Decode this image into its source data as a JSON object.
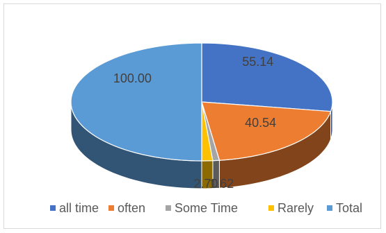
{
  "chart_data": {
    "type": "pie",
    "style": "3d",
    "title": "",
    "categories": [
      "all time",
      "often",
      "Some Time",
      "Rarely",
      "Total"
    ],
    "values": [
      55.14,
      40.54,
      1.62,
      2.7,
      100.0
    ],
    "labels": [
      "55.14",
      "40.54",
      "1.62",
      "2.70",
      "100.00"
    ],
    "colors": [
      "#4472C4",
      "#ED7D31",
      "#A5A5A5",
      "#FFC000",
      "#5B9BD5"
    ],
    "legend_position": "bottom"
  }
}
